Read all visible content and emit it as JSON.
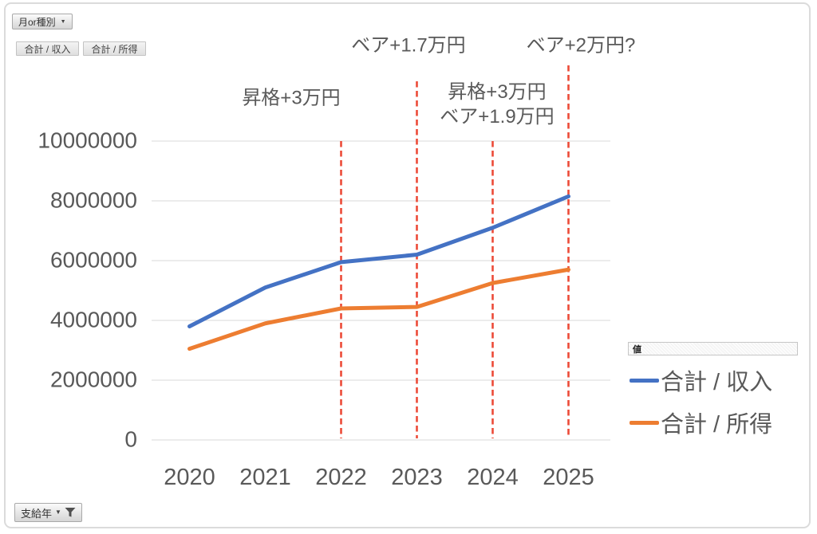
{
  "pivot": {
    "series_field": {
      "label": "月or種別"
    },
    "series_items": [
      "合計 / 収入",
      "合計 / 所得"
    ],
    "axis_field": {
      "label": "支給年"
    },
    "values_field": {
      "label": "値"
    }
  },
  "legend": {
    "position": "right",
    "items": [
      {
        "label": "合計 / 収入",
        "color": "#4472C4"
      },
      {
        "label": "合計 / 所得",
        "color": "#ED7D31"
      }
    ]
  },
  "annotations": [
    {
      "year": "2022",
      "lines": [
        "昇格+3万円"
      ]
    },
    {
      "year": "2023",
      "lines": [
        "ベア+1.7万円"
      ]
    },
    {
      "year": "2024",
      "lines": [
        "昇格+3万円",
        "ベア+1.9万円"
      ]
    },
    {
      "year": "2025",
      "lines": [
        "ベア+2万円?"
      ]
    }
  ],
  "chart_data": {
    "type": "line",
    "categories": [
      "2020",
      "2021",
      "2022",
      "2023",
      "2024",
      "2025"
    ],
    "series": [
      {
        "name": "合計 / 収入",
        "color": "#4472C4",
        "values": [
          3800000,
          5100000,
          5950000,
          6200000,
          7100000,
          8150000
        ]
      },
      {
        "name": "合計 / 所得",
        "color": "#ED7D31",
        "values": [
          3050000,
          3900000,
          4400000,
          4450000,
          5250000,
          5700000
        ]
      }
    ],
    "xlabel": "支給年",
    "ylabel": "",
    "title": "",
    "ylim": [
      0,
      10000000
    ],
    "y_ticks": [
      "10000000",
      "8000000",
      "6000000",
      "4000000",
      "2000000",
      "0"
    ],
    "grid": "horizontal",
    "grid_color": "#d9d9d9",
    "legend_position": "right",
    "reference_lines": {
      "style": "dashed",
      "color": "#ec4b38",
      "years": [
        "2022",
        "2023",
        "2024",
        "2025"
      ]
    }
  },
  "colors": {
    "axis_text": "#595959",
    "annotation_text": "#595959",
    "series_income": "#4472C4",
    "series_net": "#ED7D31",
    "reference_line": "#ec4b38",
    "gridline": "#d9d9d9"
  }
}
